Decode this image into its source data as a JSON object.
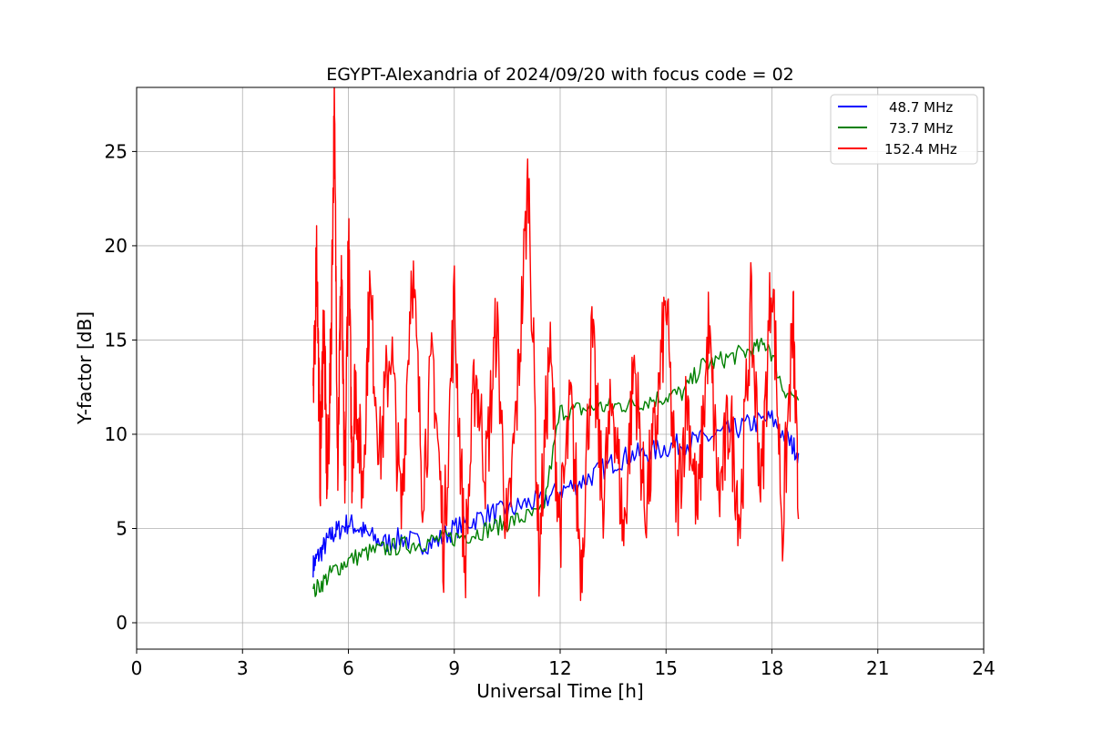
{
  "chart_data": {
    "type": "line",
    "title": "EGYPT-Alexandria of 2024/09/20 with focus code = 02",
    "xlabel": "Universal Time [h]",
    "ylabel": "Y-factor [dB]",
    "xlim": [
      0,
      24
    ],
    "ylim": [
      -1.4,
      28.4
    ],
    "xticks": [
      0,
      3,
      6,
      9,
      12,
      15,
      18,
      21,
      24
    ],
    "yticks": [
      0,
      5,
      10,
      15,
      20,
      25
    ],
    "grid": true,
    "legend_position": "top-right",
    "series": [
      {
        "name": "48.7 MHz",
        "color": "#0000ff",
        "x": [
          5.0,
          5.1,
          5.3,
          5.5,
          5.7,
          6.0,
          6.3,
          6.6,
          7.0,
          7.5,
          8.0,
          8.5,
          9.0,
          9.5,
          10.0,
          10.5,
          11.0,
          11.5,
          12.0,
          12.5,
          13.0,
          13.5,
          14.0,
          14.5,
          15.0,
          15.5,
          16.0,
          16.5,
          17.0,
          17.5,
          18.0,
          18.5,
          18.75
        ],
        "y": [
          3.0,
          3.4,
          4.0,
          4.6,
          4.9,
          5.3,
          5.0,
          4.6,
          4.2,
          4.5,
          4.2,
          4.3,
          5.0,
          5.4,
          5.8,
          5.9,
          6.3,
          6.5,
          7.0,
          7.4,
          7.9,
          8.5,
          8.9,
          9.0,
          9.3,
          9.5,
          9.7,
          10.0,
          10.3,
          10.6,
          10.8,
          9.6,
          9.0
        ]
      },
      {
        "name": "73.7 MHz",
        "color": "#008000",
        "x": [
          5.0,
          5.3,
          5.6,
          6.0,
          6.5,
          7.0,
          7.5,
          8.0,
          8.5,
          9.0,
          9.5,
          10.0,
          10.5,
          11.0,
          11.5,
          12.0,
          12.5,
          13.0,
          13.5,
          14.0,
          14.5,
          15.0,
          15.5,
          16.0,
          16.5,
          17.0,
          17.5,
          17.9,
          18.3,
          18.75
        ],
        "y": [
          1.6,
          2.2,
          2.8,
          3.3,
          3.7,
          3.9,
          4.1,
          4.2,
          4.4,
          4.5,
          4.7,
          5.0,
          5.3,
          5.6,
          5.8,
          11.2,
          11.3,
          11.4,
          11.5,
          11.6,
          11.8,
          12.0,
          12.2,
          13.6,
          13.9,
          14.2,
          14.5,
          14.8,
          12.5,
          11.8
        ]
      },
      {
        "name": "152.4 MHz",
        "color": "#ff0000",
        "x": [
          5.0,
          5.1,
          5.2,
          5.3,
          5.4,
          5.5,
          5.6,
          5.7,
          5.8,
          5.9,
          6.0,
          6.1,
          6.2,
          6.4,
          6.6,
          6.9,
          7.2,
          7.5,
          7.8,
          8.1,
          8.4,
          8.7,
          9.0,
          9.3,
          9.6,
          9.9,
          10.2,
          10.5,
          10.8,
          11.1,
          11.4,
          11.7,
          12.0,
          12.3,
          12.6,
          12.9,
          13.2,
          13.5,
          13.8,
          14.1,
          14.4,
          14.7,
          15.0,
          15.3,
          15.6,
          15.9,
          16.2,
          16.5,
          16.8,
          17.1,
          17.4,
          17.7,
          18.0,
          18.3,
          18.6,
          18.75
        ],
        "y": [
          10.5,
          20.2,
          8.0,
          16.5,
          7.0,
          14.0,
          27.0,
          9.0,
          19.0,
          6.0,
          21.0,
          8.5,
          13.0,
          7.0,
          17.5,
          9.0,
          15.0,
          5.5,
          19.5,
          7.5,
          14.0,
          4.0,
          17.0,
          3.0,
          13.5,
          8.0,
          16.0,
          4.0,
          12.5,
          23.8,
          3.5,
          14.5,
          5.0,
          11.5,
          3.0,
          15.0,
          6.5,
          12.0,
          4.5,
          14.0,
          6.0,
          10.0,
          17.0,
          6.0,
          12.0,
          5.5,
          15.5,
          6.5,
          11.0,
          5.5,
          16.5,
          7.0,
          19.0,
          5.0,
          16.0,
          5.5
        ]
      }
    ]
  }
}
